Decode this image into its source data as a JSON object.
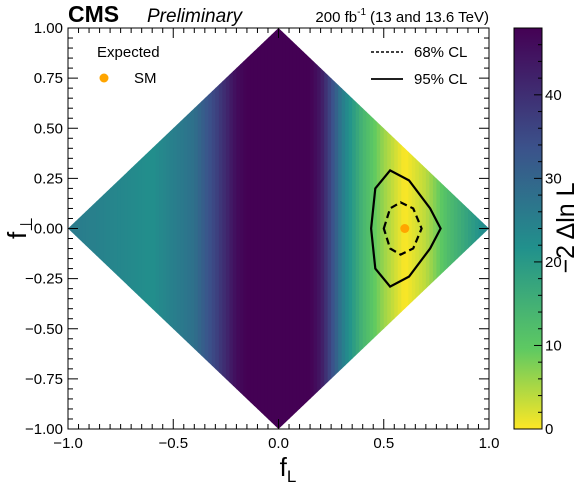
{
  "header": {
    "experiment": "CMS",
    "status": "Preliminary",
    "lumi_value": "200 fb",
    "lumi_exp": "-1",
    "energy": "(13 and 13.6 TeV)"
  },
  "legend": {
    "title": "Expected",
    "sm_label": "SM",
    "cl68_label": "68% CL",
    "cl95_label": "95% CL"
  },
  "colorbar": {
    "label": "−2 Δln L",
    "min": 0,
    "max": 48,
    "ticks": [
      "0",
      "10",
      "20",
      "30",
      "40"
    ],
    "colors": [
      "#fde725",
      "#5ec962",
      "#21918c",
      "#3b528b",
      "#440154"
    ]
  },
  "chart_data": {
    "type": "heatmap",
    "xlabel_main": "f",
    "xlabel_sub": "L",
    "ylabel_main": "f",
    "ylabel_sub": "⊥",
    "xlim": [
      -1.0,
      1.0
    ],
    "ylim": [
      -1.0,
      1.0
    ],
    "x_ticks": [
      "−1.0",
      "−0.5",
      "0.0",
      "0.5",
      "1.0"
    ],
    "y_ticks": [
      "1.00",
      "0.75",
      "0.50",
      "0.25",
      "0.00",
      "−0.25",
      "−0.50",
      "−0.75",
      "−1.00"
    ],
    "allowed_region": "|f_L| + |f_perp| <= 1",
    "sm_point": {
      "x": 0.6,
      "y": 0.0,
      "color": "#ffa500"
    },
    "contour_68": [
      [
        0.5,
        0.0
      ],
      [
        0.53,
        0.1
      ],
      [
        0.58,
        0.13
      ],
      [
        0.64,
        0.1
      ],
      [
        0.68,
        0.0
      ],
      [
        0.64,
        -0.1
      ],
      [
        0.58,
        -0.13
      ],
      [
        0.53,
        -0.1
      ],
      [
        0.5,
        0.0
      ]
    ],
    "contour_95": [
      [
        0.44,
        0.0
      ],
      [
        0.46,
        0.2
      ],
      [
        0.53,
        0.29
      ],
      [
        0.62,
        0.24
      ],
      [
        0.72,
        0.1
      ],
      [
        0.77,
        0.0
      ],
      [
        0.72,
        -0.1
      ],
      [
        0.62,
        -0.24
      ],
      [
        0.53,
        -0.29
      ],
      [
        0.46,
        -0.2
      ],
      [
        0.44,
        0.0
      ]
    ],
    "nll_profile": {
      "f_L": [
        -1.0,
        -0.8,
        -0.6,
        -0.4,
        -0.3,
        -0.2,
        -0.15,
        -0.1,
        0.0,
        0.1,
        0.15,
        0.2,
        0.3,
        0.4,
        0.5,
        0.6,
        0.7,
        0.8,
        1.0
      ],
      "value": [
        26,
        24,
        22,
        28,
        36,
        46,
        48,
        48,
        48,
        48,
        48,
        44,
        26,
        14,
        6,
        0,
        4,
        12,
        24
      ]
    }
  }
}
